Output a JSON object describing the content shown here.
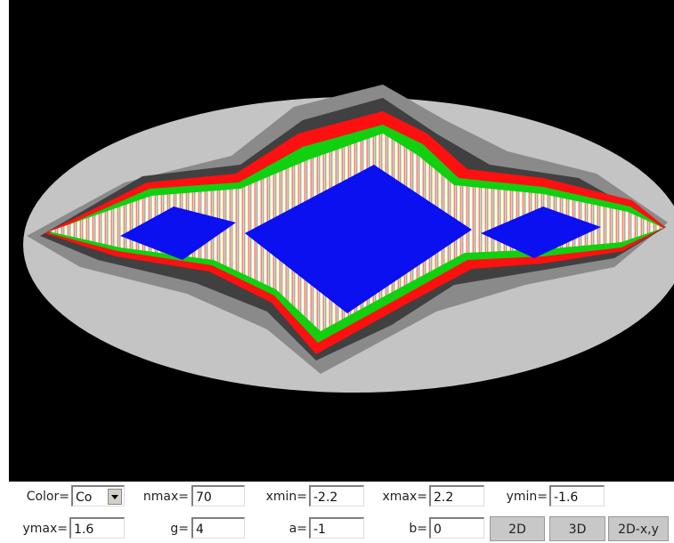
{
  "controls": {
    "fields": [
      {
        "label": "Color=",
        "value": "Co"
      },
      {
        "label": "nmax=",
        "value": "70"
      },
      {
        "label": "xmin=",
        "value": "-2.2"
      },
      {
        "label": "xmax=",
        "value": "2.2"
      },
      {
        "label": "ymin=",
        "value": "-1.6"
      },
      {
        "label": "ymax=",
        "value": "1.6"
      },
      {
        "label": "g=",
        "value": "4"
      },
      {
        "label": "a=",
        "value": "-1"
      },
      {
        "label": "b=",
        "value": "0"
      }
    ],
    "buttons": [
      "2D",
      "3D",
      "2D-x,y"
    ]
  }
}
